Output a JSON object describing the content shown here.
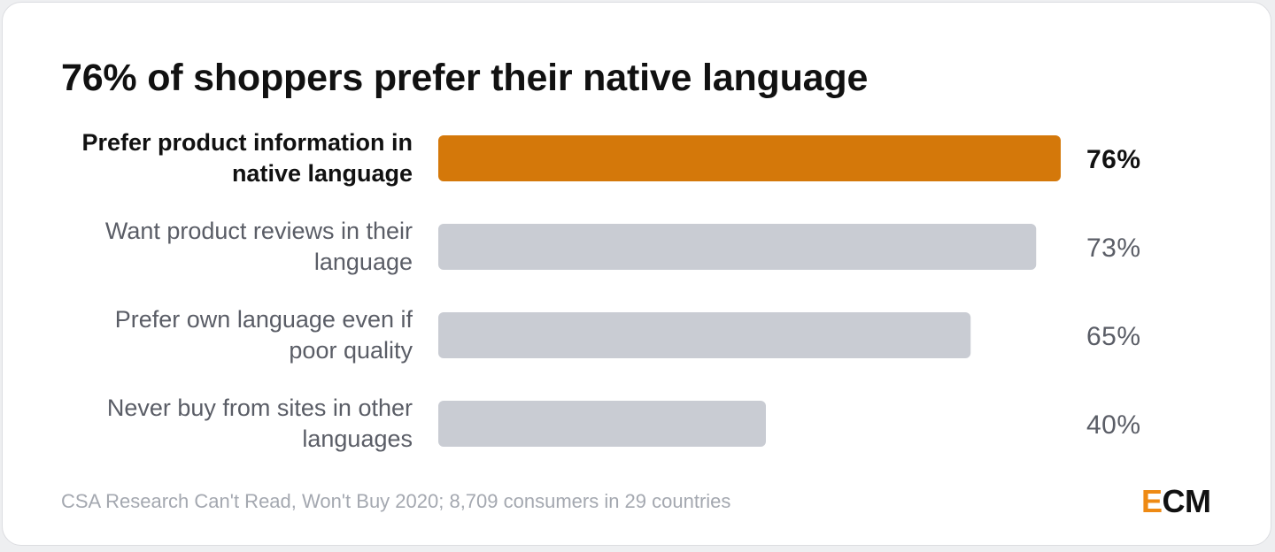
{
  "chart_data": {
    "type": "bar",
    "orientation": "horizontal",
    "title": "76% of shoppers prefer their native language",
    "categories": [
      [
        "Prefer product information in",
        "native language"
      ],
      [
        "Want product reviews in their",
        "language"
      ],
      [
        "Prefer own language even if",
        "poor quality"
      ],
      [
        "Never buy from sites in other",
        "languages"
      ]
    ],
    "values": [
      76,
      73,
      65,
      40
    ],
    "value_labels": [
      "76%",
      "73%",
      "65%",
      "40%"
    ],
    "highlight_index": 0,
    "xlim": [
      0,
      100
    ],
    "grid": false,
    "colors": {
      "highlight": "#d4780a",
      "default": "#c9ccd3",
      "highlight_text": "#111111",
      "default_text": "#5a5d66"
    }
  },
  "source": "CSA Research Can't Read, Won't Buy 2020; 8,709 consumers in 29 countries",
  "logo": {
    "accent": "E",
    "rest": "CM",
    "accent_color": "#ee8a14"
  }
}
